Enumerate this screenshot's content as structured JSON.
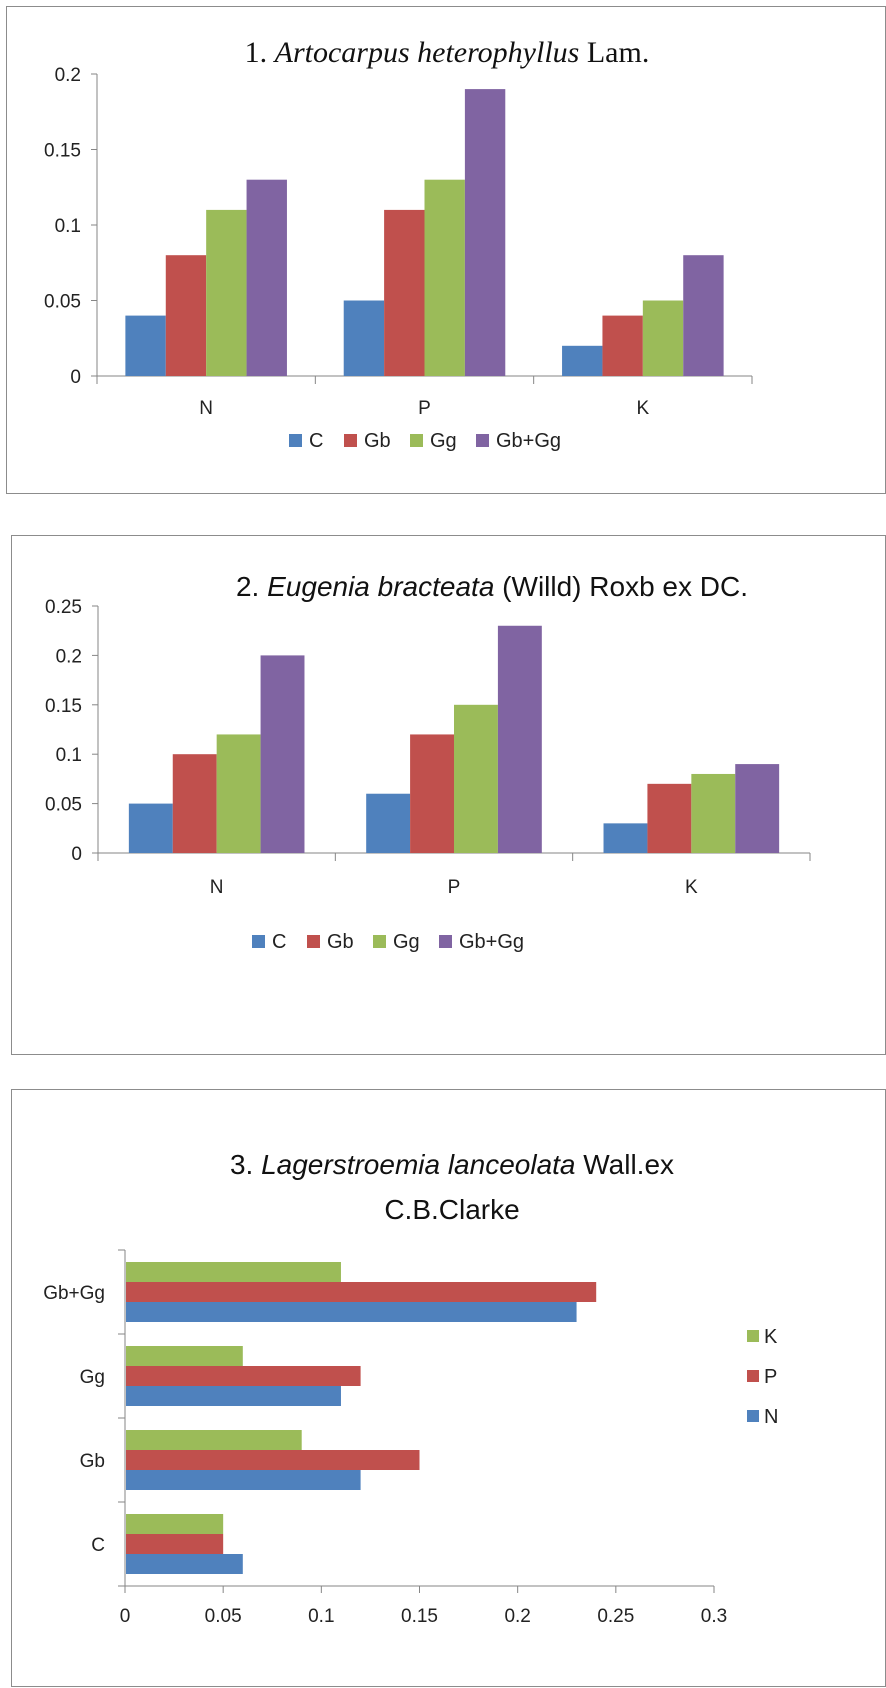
{
  "chart_data": [
    {
      "type": "bar",
      "title_parts": [
        {
          "text": "1. ",
          "italic": false
        },
        {
          "text": "Artocarpus heterophyllus",
          "italic": true
        },
        {
          "text": " Lam.",
          "italic": false
        }
      ],
      "categories": [
        "N",
        "P",
        "K"
      ],
      "series": [
        {
          "name": "C",
          "values": [
            0.04,
            0.05,
            0.02
          ]
        },
        {
          "name": "Gb",
          "values": [
            0.08,
            0.11,
            0.04
          ]
        },
        {
          "name": "Gg",
          "values": [
            0.11,
            0.13,
            0.05
          ]
        },
        {
          "name": "Gb+Gg",
          "values": [
            0.13,
            0.19,
            0.08
          ]
        }
      ],
      "yticks": [
        "0",
        "0.05",
        "0.1",
        "0.15",
        "0.2"
      ],
      "ylim": [
        0,
        0.2
      ],
      "grid": false,
      "legend_position": "bottom"
    },
    {
      "type": "bar",
      "title_parts": [
        {
          "text": "2. ",
          "italic": false
        },
        {
          "text": "Eugenia  bracteata",
          "italic": true
        },
        {
          "text": " (Willd) Roxb ex DC.",
          "italic": false
        }
      ],
      "categories": [
        "N",
        "P",
        "K"
      ],
      "series": [
        {
          "name": "C",
          "values": [
            0.05,
            0.06,
            0.03
          ]
        },
        {
          "name": "Gb",
          "values": [
            0.1,
            0.12,
            0.07
          ]
        },
        {
          "name": "Gg",
          "values": [
            0.12,
            0.15,
            0.08
          ]
        },
        {
          "name": "Gb+Gg",
          "values": [
            0.2,
            0.23,
            0.09
          ]
        }
      ],
      "yticks": [
        "0",
        "0.05",
        "0.1",
        "0.15",
        "0.2",
        "0.25"
      ],
      "ylim": [
        0,
        0.25
      ],
      "grid": false,
      "legend_position": "bottom"
    },
    {
      "type": "bar",
      "orientation": "horizontal",
      "title_lines": [
        [
          {
            "text": "3. ",
            "italic": false
          },
          {
            "text": "Lagerstroemia  lanceolata",
            "italic": true
          },
          {
            "text": " Wall.ex",
            "italic": false
          }
        ],
        [
          {
            "text": "C.B.Clarke",
            "italic": false
          }
        ]
      ],
      "categories": [
        "C",
        "Gb",
        "Gg",
        "Gb+Gg"
      ],
      "series": [
        {
          "name": "N",
          "values": [
            0.06,
            0.12,
            0.11,
            0.23
          ]
        },
        {
          "name": "P",
          "values": [
            0.05,
            0.15,
            0.12,
            0.24
          ]
        },
        {
          "name": "K",
          "values": [
            0.05,
            0.09,
            0.06,
            0.11
          ]
        }
      ],
      "xticks": [
        "0",
        "0.05",
        "0.1",
        "0.15",
        "0.2",
        "0.25",
        "0.3"
      ],
      "xlim": [
        0,
        0.3
      ],
      "grid": false,
      "legend_position": "right"
    }
  ],
  "colors": {
    "C": "#4f81bd",
    "Gb": "#c0504d",
    "Gg": "#9bbb59",
    "Gb+Gg": "#8064a2",
    "N": "#4f81bd",
    "P": "#c0504d",
    "K": "#9bbb59"
  }
}
